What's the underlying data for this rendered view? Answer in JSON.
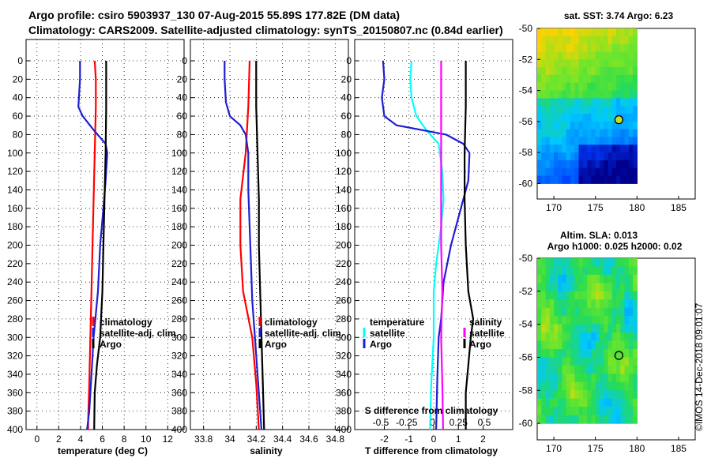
{
  "header": {
    "line1": "Argo profile: csiro 5903937_130 07-Aug-2015 55.89S 177.82E (DM data)",
    "line2": "Climatology: CARS2009. Satellite-adjusted climatology: synTS_20150807.nc (0.84d earlier)"
  },
  "colors": {
    "climatology": "#ff0000",
    "satellite": "#1e1ed2",
    "argo": "#000000",
    "temperature": "#00ffff",
    "salinity": "#ff00ff"
  },
  "watermark": "©IMOS 14-Dec-2018 09:01:07",
  "chart_data": [
    {
      "type": "line",
      "id": "temperature",
      "xlabel": "temperature (deg C)",
      "ylabel": "depth",
      "xlim": [
        -1,
        13.5
      ],
      "ylim": [
        0,
        400
      ],
      "xticks": [
        0,
        2,
        4,
        6,
        8,
        10,
        12
      ],
      "yticks": [
        0,
        20,
        40,
        60,
        80,
        100,
        120,
        140,
        160,
        180,
        200,
        220,
        240,
        260,
        280,
        300,
        320,
        340,
        360,
        380,
        400
      ],
      "legend": {
        "placement": "lower-right",
        "entries": [
          "climatology",
          "satellite-adj. clim.",
          "Argo"
        ]
      },
      "series": [
        {
          "name": "climatology",
          "color": "#ff0000",
          "points": [
            [
              5.3,
              0
            ],
            [
              5.4,
              20
            ],
            [
              5.4,
              50
            ],
            [
              5.3,
              100
            ],
            [
              5.2,
              150
            ],
            [
              5.1,
              200
            ],
            [
              5.0,
              250
            ],
            [
              4.9,
              300
            ],
            [
              4.8,
              350
            ],
            [
              4.7,
              390
            ],
            [
              4.7,
              400
            ]
          ]
        },
        {
          "name": "satellite-adj. clim.",
          "color": "#1e1ed2",
          "points": [
            [
              3.95,
              0
            ],
            [
              3.95,
              20
            ],
            [
              3.85,
              40
            ],
            [
              3.8,
              50
            ],
            [
              4.2,
              60
            ],
            [
              5.2,
              75
            ],
            [
              6.3,
              90
            ],
            [
              6.45,
              100
            ],
            [
              6.3,
              130
            ],
            [
              6.1,
              160
            ],
            [
              5.8,
              200
            ],
            [
              5.6,
              250
            ],
            [
              5.2,
              300
            ],
            [
              5.0,
              340
            ],
            [
              4.8,
              380
            ],
            [
              4.6,
              400
            ]
          ]
        },
        {
          "name": "Argo",
          "color": "#000000",
          "points": [
            [
              6.35,
              0
            ],
            [
              6.35,
              50
            ],
            [
              6.3,
              100
            ],
            [
              6.2,
              150
            ],
            [
              6.1,
              200
            ],
            [
              6.0,
              250
            ],
            [
              5.8,
              300
            ],
            [
              5.5,
              330
            ],
            [
              5.3,
              360
            ],
            [
              5.25,
              400
            ]
          ]
        }
      ]
    },
    {
      "type": "line",
      "id": "salinity",
      "xlabel": "salinity",
      "ylabel": "depth",
      "xlim": [
        33.7,
        34.9
      ],
      "ylim": [
        0,
        400
      ],
      "xticks": [
        33.8,
        34,
        34.2,
        34.4,
        34.6,
        34.8
      ],
      "xtick_labels": [
        "33.8",
        "34",
        "34.2",
        "34.4",
        "34.6",
        "34.8"
      ],
      "legend": {
        "placement": "lower-right",
        "entries": [
          "climatology",
          "satellite-adj. clim.",
          "Argo"
        ]
      },
      "series": [
        {
          "name": "climatology",
          "color": "#ff0000",
          "points": [
            [
              34.15,
              0
            ],
            [
              34.14,
              50
            ],
            [
              34.12,
              100
            ],
            [
              34.08,
              150
            ],
            [
              34.08,
              200
            ],
            [
              34.1,
              250
            ],
            [
              34.17,
              300
            ],
            [
              34.2,
              350
            ],
            [
              34.22,
              400
            ]
          ]
        },
        {
          "name": "satellite-adj. clim.",
          "color": "#1e1ed2",
          "points": [
            [
              33.96,
              0
            ],
            [
              33.96,
              20
            ],
            [
              33.97,
              45
            ],
            [
              34.0,
              60
            ],
            [
              34.08,
              70
            ],
            [
              34.12,
              80
            ],
            [
              34.14,
              100
            ],
            [
              34.14,
              140
            ],
            [
              34.15,
              180
            ],
            [
              34.16,
              220
            ],
            [
              34.17,
              260
            ],
            [
              34.19,
              300
            ],
            [
              34.21,
              340
            ],
            [
              34.23,
              380
            ],
            [
              34.24,
              400
            ]
          ]
        },
        {
          "name": "Argo",
          "color": "#000000",
          "points": [
            [
              34.2,
              0
            ],
            [
              34.2,
              50
            ],
            [
              34.21,
              100
            ],
            [
              34.22,
              150
            ],
            [
              34.22,
              200
            ],
            [
              34.23,
              250
            ],
            [
              34.24,
              300
            ],
            [
              34.25,
              350
            ],
            [
              34.26,
              400
            ]
          ]
        }
      ]
    },
    {
      "type": "line",
      "id": "difference",
      "xlabel": "T difference from climatology",
      "xlabel_top": "S difference from climatology",
      "ylabel": "depth",
      "xlim": [
        -3.2,
        3.2
      ],
      "ylim": [
        0,
        400
      ],
      "xticks": [
        -2,
        -1,
        0,
        1,
        2
      ],
      "xtick_labels": [
        "-2",
        "-1",
        "0",
        "1",
        "2"
      ],
      "xticks_top": [
        -0.5,
        -0.25,
        0,
        0.25,
        0.5
      ],
      "xtick_labels_top": [
        "-0.5",
        "-0.25",
        "0",
        "0.25",
        "0.5"
      ],
      "legend": {
        "placement": "lower",
        "left_title": "temperature",
        "left_entries": [
          "satellite",
          "Argo"
        ],
        "right_title": "salinity",
        "right_entries": [
          "satellite",
          "Argo"
        ]
      },
      "series": [
        {
          "name": "temperature satellite",
          "color": "#00ffff",
          "points": [
            [
              -0.9,
              0
            ],
            [
              -0.95,
              20
            ],
            [
              -0.9,
              40
            ],
            [
              -0.7,
              60
            ],
            [
              -0.3,
              75
            ],
            [
              0.2,
              90
            ],
            [
              0.35,
              120
            ],
            [
              0.4,
              150
            ],
            [
              0.3,
              180
            ],
            [
              0.1,
              220
            ],
            [
              0.0,
              250
            ],
            [
              0.0,
              300
            ],
            [
              -0.1,
              350
            ],
            [
              -0.15,
              400
            ]
          ]
        },
        {
          "name": "temperature Argo",
          "color": "#1e1ed2",
          "points": [
            [
              -2.05,
              0
            ],
            [
              -2.0,
              20
            ],
            [
              -2.1,
              40
            ],
            [
              -2.0,
              60
            ],
            [
              -1.5,
              70
            ],
            [
              0.5,
              80
            ],
            [
              1.2,
              90
            ],
            [
              1.45,
              100
            ],
            [
              1.4,
              130
            ],
            [
              1.1,
              160
            ],
            [
              0.7,
              200
            ],
            [
              0.4,
              240
            ],
            [
              0.3,
              280
            ],
            [
              0.2,
              300
            ],
            [
              0.15,
              340
            ],
            [
              0.1,
              400
            ]
          ]
        },
        {
          "name": "salinity satellite",
          "color": "#ff00ff",
          "points": [
            [
              0.3,
              0
            ],
            [
              0.3,
              50
            ],
            [
              0.3,
              100
            ],
            [
              0.3,
              150
            ],
            [
              0.3,
              200
            ],
            [
              0.35,
              250
            ],
            [
              0.3,
              300
            ],
            [
              0.35,
              350
            ],
            [
              0.38,
              400
            ]
          ]
        },
        {
          "name": "salinity Argo",
          "color": "#000000",
          "points": [
            [
              1.3,
              0
            ],
            [
              1.3,
              50
            ],
            [
              1.25,
              100
            ],
            [
              1.25,
              150
            ],
            [
              1.3,
              200
            ],
            [
              1.4,
              250
            ],
            [
              1.6,
              280
            ],
            [
              1.5,
              300
            ],
            [
              1.4,
              330
            ],
            [
              1.3,
              360
            ],
            [
              1.3,
              400
            ]
          ]
        }
      ]
    },
    {
      "type": "heatmap",
      "id": "sst-map",
      "title": "sat. SST: 3.74 Argo: 6.23",
      "xlim": [
        168,
        187
      ],
      "ylim": [
        -61,
        -50
      ],
      "xticks": [
        170,
        175,
        180,
        185
      ],
      "yticks": [
        -50,
        -52,
        -54,
        -56,
        -58,
        -60
      ],
      "data_extent": {
        "lon": [
          168,
          180
        ],
        "lat": [
          -60,
          -50
        ]
      },
      "argo_position": [
        177.82,
        -55.89
      ]
    },
    {
      "type": "heatmap",
      "id": "sla-map",
      "title_line1": "Altim. SLA: 0.013",
      "title_line2": "Argo h1000: 0.025 h2000: 0.02",
      "xlim": [
        168,
        187
      ],
      "ylim": [
        -61,
        -50
      ],
      "xticks": [
        170,
        175,
        180,
        185
      ],
      "yticks": [
        -50,
        -52,
        -54,
        -56,
        -58,
        -60
      ],
      "data_extent": {
        "lon": [
          168,
          180
        ],
        "lat": [
          -60,
          -50
        ]
      },
      "argo_position": [
        177.82,
        -55.89
      ]
    }
  ]
}
